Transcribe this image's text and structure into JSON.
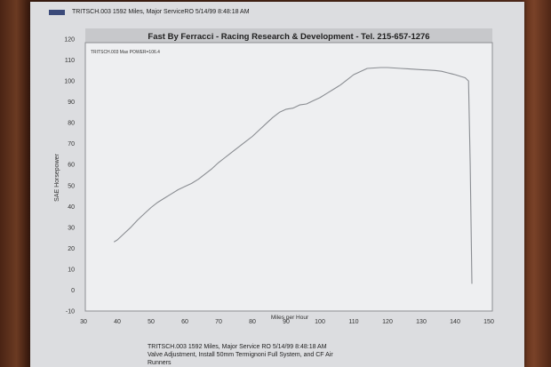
{
  "header": {
    "text": "TRITSCH.003   1592 Miles,  Major ServiceRO  5/14/99 8:48:18 AM",
    "swatch_color": "#3b4a7a"
  },
  "footer": {
    "line1": "TRITSCH.003   1592 Miles,  Major Service    RO   5/14/99 8:48:18 AM",
    "line2": "Valve Adjustment, Install 50mm Termignoni Full System, and CF Air",
    "line3": "Runners"
  },
  "chart_data": {
    "type": "line",
    "title": "Fast By Ferracci - Racing Research & Development - Tel. 215-657-1276",
    "inset_label": "TRITSCH.003   Max POWER=106.4",
    "xlabel": "Miles per Hour",
    "ylabel": "SAE Horsepower",
    "xlim": [
      30,
      150
    ],
    "ylim": [
      -10,
      120
    ],
    "x_ticks": [
      30,
      40,
      50,
      60,
      70,
      80,
      90,
      100,
      110,
      120,
      130,
      140,
      150
    ],
    "y_ticks": [
      -10,
      0,
      10,
      20,
      30,
      40,
      50,
      60,
      70,
      80,
      90,
      100,
      110,
      120
    ],
    "grid": false,
    "line_color": "#8a8d92",
    "series": [
      {
        "x": [
          39,
          40,
          42,
          44,
          46,
          48,
          50,
          52,
          54,
          56,
          58,
          60,
          62,
          64,
          66,
          68,
          70,
          72,
          74,
          76,
          78,
          80,
          82,
          84,
          86,
          88,
          90,
          92,
          94,
          96,
          98,
          100,
          102,
          104,
          106,
          108,
          110,
          112,
          114,
          116,
          118,
          120,
          122,
          124,
          126,
          128,
          130,
          132,
          134,
          136,
          138,
          140,
          142,
          143,
          144,
          144.5,
          145
        ],
        "y": [
          23,
          24,
          27,
          30,
          33.5,
          36.5,
          39.5,
          42,
          44,
          46,
          48,
          49.5,
          51,
          53,
          55.5,
          58,
          61,
          63.5,
          66,
          68.5,
          71,
          73.5,
          76.5,
          79.5,
          82.5,
          85,
          86.5,
          87,
          88.5,
          89,
          90.5,
          92,
          94,
          96,
          98,
          100.5,
          103,
          104.5,
          106,
          106.2,
          106.4,
          106.4,
          106.2,
          106,
          105.8,
          105.6,
          105.4,
          105.2,
          105,
          104.6,
          103.8,
          103,
          102,
          101.5,
          100,
          60,
          3
        ]
      }
    ]
  }
}
